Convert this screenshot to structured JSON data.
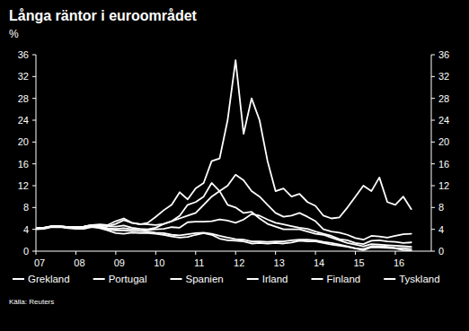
{
  "chart_data": {
    "type": "line",
    "title": "Långa räntor i euroområdet",
    "ylabel": "%",
    "source": "Källa: Reuters",
    "x": [
      2007.0,
      2007.2,
      2007.4,
      2007.6,
      2007.8,
      2008.0,
      2008.2,
      2008.4,
      2008.6,
      2008.8,
      2009.0,
      2009.2,
      2009.4,
      2009.6,
      2009.8,
      2010.0,
      2010.2,
      2010.4,
      2010.6,
      2010.8,
      2011.0,
      2011.2,
      2011.4,
      2011.6,
      2011.8,
      2012.0,
      2012.2,
      2012.4,
      2012.6,
      2012.8,
      2013.0,
      2013.2,
      2013.4,
      2013.6,
      2013.8,
      2014.0,
      2014.2,
      2014.4,
      2014.6,
      2014.8,
      2015.0,
      2015.2,
      2015.4,
      2015.6,
      2015.8,
      2016.0,
      2016.2,
      2016.4
    ],
    "xlim": [
      2007,
      2016.9
    ],
    "xticks": [
      {
        "value": 2007,
        "label": "07"
      },
      {
        "value": 2008,
        "label": "08"
      },
      {
        "value": 2009,
        "label": "09"
      },
      {
        "value": 2010,
        "label": "10"
      },
      {
        "value": 2011,
        "label": "11"
      },
      {
        "value": 2012,
        "label": "12"
      },
      {
        "value": 2013,
        "label": "13"
      },
      {
        "value": 2014,
        "label": "14"
      },
      {
        "value": 2015,
        "label": "15"
      },
      {
        "value": 2016,
        "label": "16"
      }
    ],
    "ylim": [
      0,
      36
    ],
    "yticks": [
      0,
      4,
      8,
      12,
      16,
      20,
      24,
      28,
      32,
      36
    ],
    "y2lim": [
      0,
      36
    ],
    "y2ticks": [
      0,
      4,
      8,
      12,
      16,
      20,
      24,
      28,
      32,
      36
    ],
    "grid": false,
    "legend": "bottom",
    "series": [
      {
        "name": "Grekland",
        "color": "#ffffff",
        "values": [
          4.2,
          4.3,
          4.6,
          4.6,
          4.4,
          4.4,
          4.5,
          4.8,
          4.9,
          4.8,
          5.5,
          6.0,
          5.2,
          4.9,
          5.2,
          6.3,
          7.5,
          8.5,
          10.8,
          9.5,
          11.5,
          12.5,
          16.5,
          17.0,
          24.0,
          35.0,
          21.5,
          28.0,
          24.0,
          16.5,
          11.0,
          11.5,
          10.0,
          10.5,
          9.0,
          8.3,
          6.5,
          6.0,
          6.2,
          8.0,
          10.0,
          12.0,
          11.0,
          13.5,
          9.0,
          8.5,
          10.0,
          7.7
        ]
      },
      {
        "name": "Portugal",
        "color": "#ffffff",
        "values": [
          4.2,
          4.3,
          4.6,
          4.6,
          4.4,
          4.4,
          4.5,
          4.8,
          4.8,
          4.6,
          4.5,
          4.7,
          4.3,
          4.1,
          4.0,
          4.3,
          5.0,
          5.5,
          6.0,
          6.5,
          7.0,
          8.5,
          10.0,
          11.0,
          12.0,
          14.0,
          13.0,
          11.0,
          10.0,
          8.5,
          7.0,
          6.3,
          6.5,
          7.0,
          6.3,
          5.5,
          4.0,
          3.6,
          3.4,
          3.0,
          2.4,
          2.1,
          2.8,
          2.7,
          2.5,
          2.8,
          3.1,
          3.2
        ]
      },
      {
        "name": "Spanien",
        "color": "#ffffff",
        "values": [
          4.1,
          4.2,
          4.5,
          4.5,
          4.3,
          4.3,
          4.4,
          4.7,
          4.6,
          4.2,
          4.1,
          4.2,
          4.0,
          4.0,
          3.9,
          4.0,
          4.1,
          4.4,
          4.3,
          5.3,
          5.4,
          5.4,
          5.5,
          5.8,
          5.6,
          5.2,
          5.8,
          6.8,
          6.5,
          5.8,
          5.2,
          4.9,
          4.6,
          4.3,
          4.1,
          3.6,
          3.2,
          2.8,
          2.2,
          2.0,
          1.5,
          1.3,
          1.9,
          2.0,
          1.8,
          1.7,
          1.5,
          1.6
        ]
      },
      {
        "name": "Irland",
        "color": "#ffffff",
        "values": [
          4.2,
          4.3,
          4.6,
          4.6,
          4.4,
          4.4,
          4.5,
          4.8,
          4.8,
          4.6,
          5.0,
          5.7,
          5.2,
          5.0,
          4.9,
          4.8,
          5.0,
          5.5,
          6.5,
          8.5,
          9.0,
          10.0,
          12.5,
          11.0,
          8.5,
          8.0,
          7.0,
          7.2,
          6.0,
          5.0,
          4.5,
          4.0,
          4.0,
          4.0,
          3.6,
          3.2,
          3.0,
          2.5,
          2.0,
          1.5,
          1.2,
          0.9,
          1.3,
          1.2,
          1.1,
          1.0,
          0.9,
          0.8
        ]
      },
      {
        "name": "Finland",
        "color": "#ffffff",
        "values": [
          4.1,
          4.2,
          4.5,
          4.5,
          4.3,
          4.3,
          4.3,
          4.6,
          4.4,
          4.0,
          3.8,
          3.8,
          3.7,
          3.7,
          3.6,
          3.4,
          3.3,
          3.0,
          2.9,
          3.1,
          3.3,
          3.4,
          3.2,
          2.8,
          2.5,
          2.2,
          2.1,
          1.8,
          1.8,
          1.7,
          1.8,
          1.8,
          2.0,
          2.1,
          2.1,
          2.0,
          1.7,
          1.5,
          1.2,
          0.9,
          0.5,
          0.4,
          0.9,
          0.9,
          0.8,
          0.6,
          0.5,
          0.4
        ]
      },
      {
        "name": "Tyskland",
        "color": "#ffffff",
        "values": [
          4.0,
          4.1,
          4.4,
          4.4,
          4.2,
          4.1,
          4.1,
          4.4,
          4.2,
          3.8,
          3.3,
          3.2,
          3.4,
          3.3,
          3.3,
          3.2,
          3.0,
          2.7,
          2.5,
          2.6,
          3.0,
          3.3,
          3.0,
          2.3,
          2.0,
          1.9,
          1.8,
          1.4,
          1.5,
          1.4,
          1.5,
          1.4,
          1.6,
          1.9,
          1.8,
          1.8,
          1.5,
          1.2,
          1.0,
          0.8,
          0.5,
          0.2,
          0.7,
          0.7,
          0.6,
          0.5,
          0.2,
          0.1
        ]
      }
    ]
  }
}
